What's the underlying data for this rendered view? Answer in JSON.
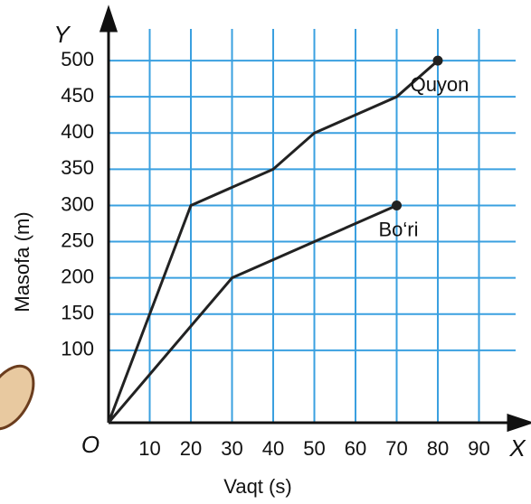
{
  "chart_data": {
    "type": "line",
    "y_axis_symbol": "Y",
    "x_axis_symbol": "X",
    "origin_label": "O",
    "y_label": "Masofa  (m)",
    "x_label": "Vaqt  (s)",
    "xlim": [
      0,
      100
    ],
    "xticks": [
      10,
      20,
      30,
      40,
      50,
      60,
      70,
      80,
      90
    ],
    "ylim": [
      0,
      550
    ],
    "yticks": [
      100,
      150,
      200,
      250,
      300,
      350,
      400,
      450,
      500
    ],
    "grid": true,
    "grid_color": "#3aa0e0",
    "series": [
      {
        "name": "Quyon",
        "color": "#222222",
        "x": [
          0,
          10,
          20,
          40,
          50,
          70,
          80
        ],
        "values": [
          0,
          150,
          300,
          350,
          400,
          450,
          500
        ]
      },
      {
        "name": "Bo‘ri",
        "color": "#222222",
        "x": [
          0,
          30,
          70
        ],
        "values": [
          0,
          200,
          300
        ]
      }
    ]
  }
}
